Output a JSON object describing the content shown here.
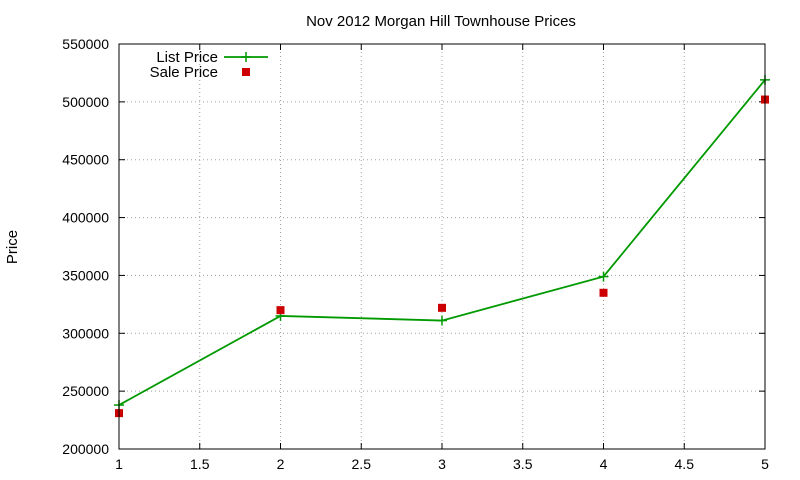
{
  "chart_data": {
    "type": "line",
    "title": "Nov 2012 Morgan Hill Townhouse Prices",
    "xlabel": "",
    "ylabel": "Price",
    "xlim": [
      1,
      5
    ],
    "ylim": [
      200000,
      550000
    ],
    "x_ticks": [
      "1",
      "1.5",
      "2",
      "2.5",
      "3",
      "3.5",
      "4",
      "4.5",
      "5"
    ],
    "y_ticks": [
      "200000",
      "250000",
      "300000",
      "350000",
      "400000",
      "450000",
      "500000",
      "550000"
    ],
    "grid": true,
    "legend_position": "top-left",
    "series": [
      {
        "name": "List Price",
        "style": "line+cross",
        "color": "#009900",
        "x": [
          1,
          2,
          3,
          4,
          5
        ],
        "values": [
          238000,
          315000,
          311000,
          349000,
          519000
        ]
      },
      {
        "name": "Sale Price",
        "style": "square-points",
        "color": "#cc0000",
        "x": [
          1,
          2,
          3,
          4,
          5
        ],
        "values": [
          231000,
          320000,
          322000,
          335000,
          502000
        ]
      }
    ]
  }
}
